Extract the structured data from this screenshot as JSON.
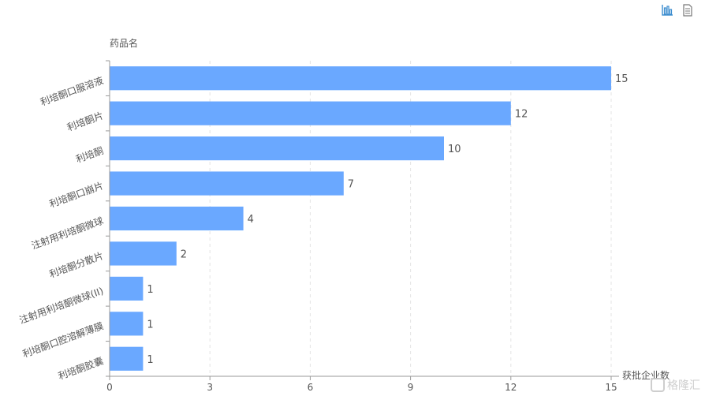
{
  "toolbar": {
    "chart_icon": "bar-chart-icon",
    "data_icon": "data-view-icon",
    "accent": "#3c8dcf"
  },
  "watermark": {
    "text": "格隆汇"
  },
  "chart_data": {
    "type": "bar",
    "orientation": "horizontal",
    "ylabel": "药品名",
    "xlabel": "获批企业数",
    "categories": [
      "利培酮口服溶液",
      "利培酮片",
      "利培酮",
      "利培酮口崩片",
      "注射用利培酮微球",
      "利培酮分散片",
      "注射用利培酮微球(II)",
      "利培酮口腔溶解薄膜",
      "利培酮胶囊"
    ],
    "values": [
      15,
      12,
      10,
      7,
      4,
      2,
      1,
      1,
      1
    ],
    "xlim": [
      0,
      15
    ],
    "xticks": [
      "0",
      "3",
      "6",
      "9",
      "12",
      "15"
    ],
    "grid": true,
    "bar_color": "#6aa8ff",
    "text_color": "#555555",
    "axis_color": "#999999"
  }
}
